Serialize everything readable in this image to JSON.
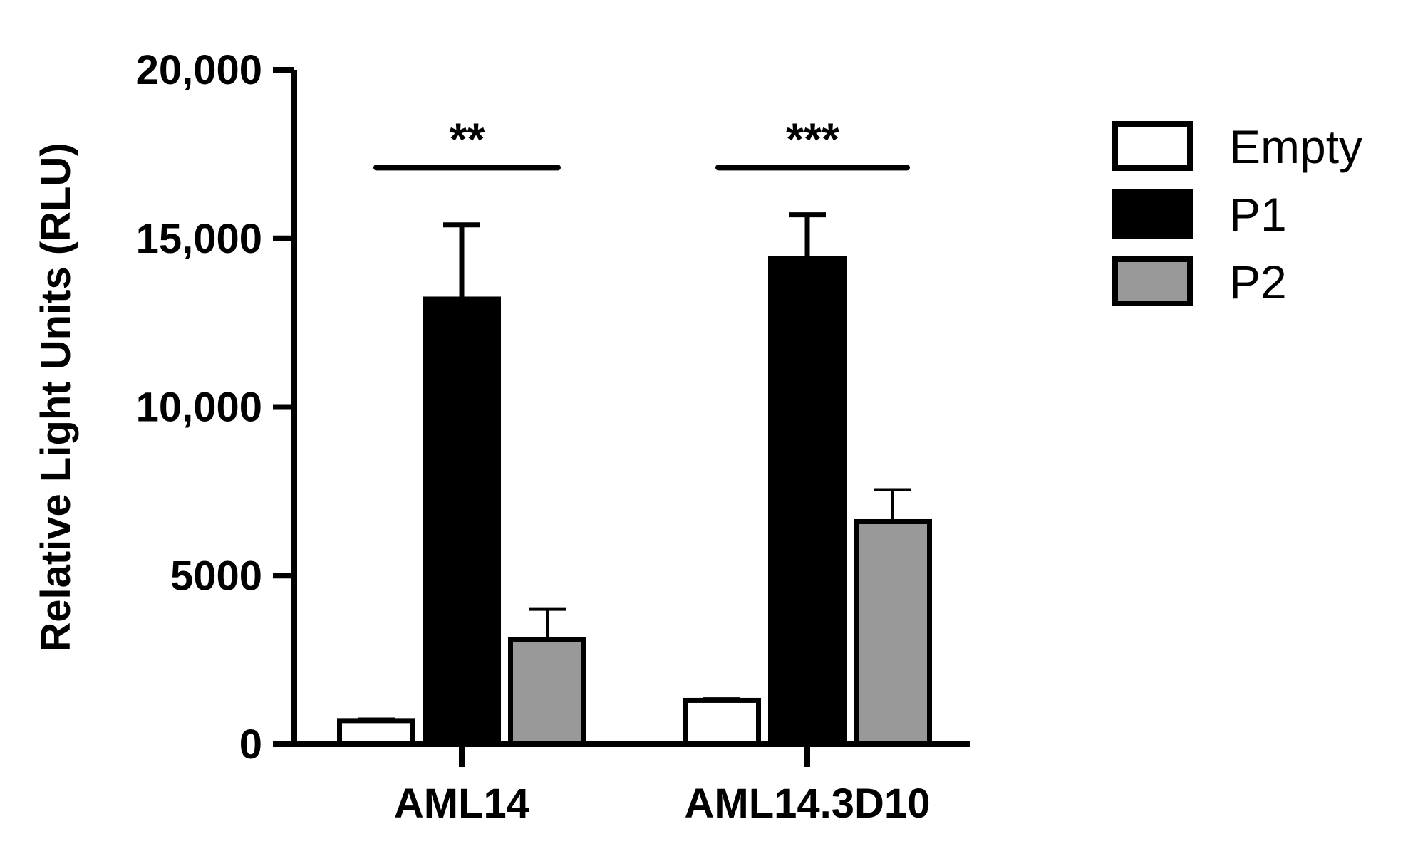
{
  "chart_data": {
    "type": "bar",
    "title": "",
    "xlabel": "",
    "ylabel": "Relative Light Units (RLU)",
    "ylim": [
      0,
      20000
    ],
    "yticks": [
      0,
      5000,
      10000,
      15000,
      20000
    ],
    "ytick_labels": [
      "0",
      "5000",
      "10,000",
      "15,000",
      "20,000"
    ],
    "grid": false,
    "legend_position": "top-right",
    "categories": [
      "AML14",
      "AML14.3D10"
    ],
    "series": [
      {
        "name": "Empty",
        "values": [
          700,
          1300
        ],
        "errors": [
          50,
          50
        ],
        "color": "#ffffff"
      },
      {
        "name": "P1",
        "values": [
          13200,
          14400
        ],
        "errors": [
          2200,
          1300
        ],
        "color": "#000000"
      },
      {
        "name": "P2",
        "values": [
          3100,
          6600
        ],
        "errors": [
          900,
          950
        ],
        "color": "#999999"
      }
    ],
    "annotations": [
      {
        "category": "AML14",
        "text": "**",
        "y": 17100
      },
      {
        "category": "AML14.3D10",
        "text": "***",
        "y": 17100
      }
    ]
  }
}
